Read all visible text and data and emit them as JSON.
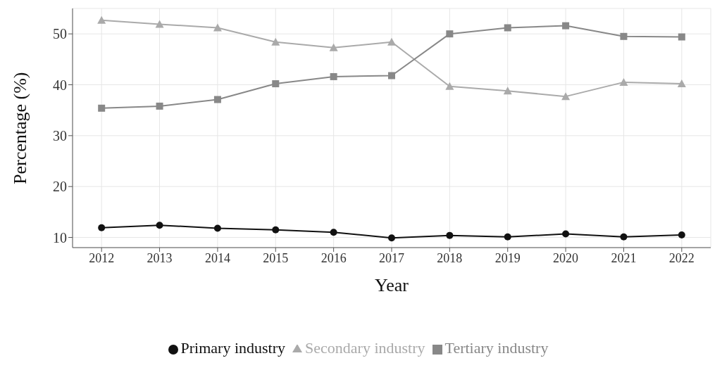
{
  "chart_data": {
    "type": "line",
    "xlabel": "Year",
    "ylabel": "Percentage (%)",
    "x": [
      2012,
      2013,
      2014,
      2015,
      2016,
      2017,
      2018,
      2019,
      2020,
      2021,
      2022
    ],
    "xlim": [
      2011.5,
      2022.5
    ],
    "xticks": [
      2012,
      2013,
      2014,
      2015,
      2016,
      2017,
      2018,
      2019,
      2020,
      2021,
      2022
    ],
    "ylim": [
      8,
      55
    ],
    "yticks": [
      10,
      20,
      30,
      40,
      50
    ],
    "grid": true,
    "legend": "bottom",
    "line_style": "solid",
    "series": [
      {
        "name": "Primary industry",
        "color": "#111111",
        "marker": "circle",
        "values": [
          11.9,
          12.4,
          11.8,
          11.5,
          11.0,
          9.9,
          10.4,
          10.1,
          10.7,
          10.1,
          10.5
        ]
      },
      {
        "name": "Secondary industry",
        "color": "#aaaaaa",
        "marker": "triangle",
        "values": [
          52.7,
          51.9,
          51.2,
          48.4,
          47.3,
          48.4,
          39.7,
          38.8,
          37.7,
          40.5,
          40.2
        ]
      },
      {
        "name": "Tertiary industry",
        "color": "#888888",
        "marker": "square",
        "values": [
          35.4,
          35.8,
          37.1,
          40.2,
          41.6,
          41.8,
          50.0,
          51.2,
          51.6,
          49.5,
          49.4
        ]
      }
    ]
  }
}
